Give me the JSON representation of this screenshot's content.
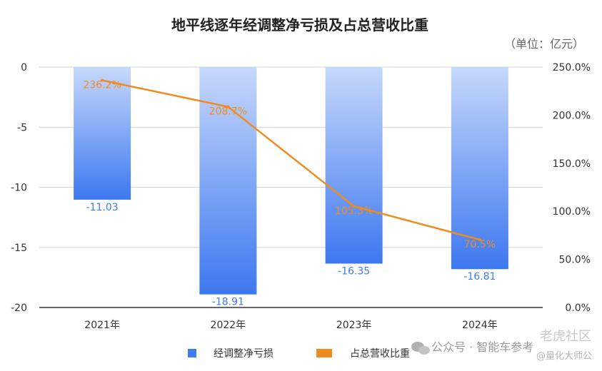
{
  "chart_data": {
    "type": "bar",
    "title": "地平线逐年经调整净亏损及占总营收比重",
    "unit_label": "（单位：亿元）",
    "categories": [
      "2021年",
      "2022年",
      "2023年",
      "2024年"
    ],
    "series": [
      {
        "name": "经调整净亏损",
        "type": "bar",
        "axis": "left",
        "values": [
          -11.03,
          -18.91,
          -16.35,
          -16.81
        ],
        "labels": [
          "-11.03",
          "-18.91",
          "-16.35",
          "-16.81"
        ],
        "color": "#3f7cf2"
      },
      {
        "name": "占总营收比重",
        "type": "line",
        "axis": "right",
        "values": [
          236.2,
          208.7,
          105.3,
          70.5
        ],
        "labels": [
          "236.2%",
          "208.7%",
          "105.3%",
          "70.5%"
        ],
        "color": "#f08c1e"
      }
    ],
    "y_left": {
      "min": -20,
      "max": 0,
      "ticks": [
        "0",
        "-5",
        "-10",
        "-15",
        "-20"
      ],
      "tick_values": [
        0,
        -5,
        -10,
        -15,
        -20
      ]
    },
    "y_right": {
      "min": 0,
      "max": 250,
      "ticks": [
        "250.0%",
        "200.0%",
        "150.0%",
        "100.0%",
        "50.0%",
        "0.0%"
      ],
      "tick_values": [
        250,
        200,
        150,
        100,
        50,
        0
      ]
    },
    "grid": true,
    "legend_position": "bottom"
  },
  "watermark": {
    "line1": "公众号 · 智能车参考",
    "line2": "老虎社区",
    "line3": "@量化大师公"
  }
}
